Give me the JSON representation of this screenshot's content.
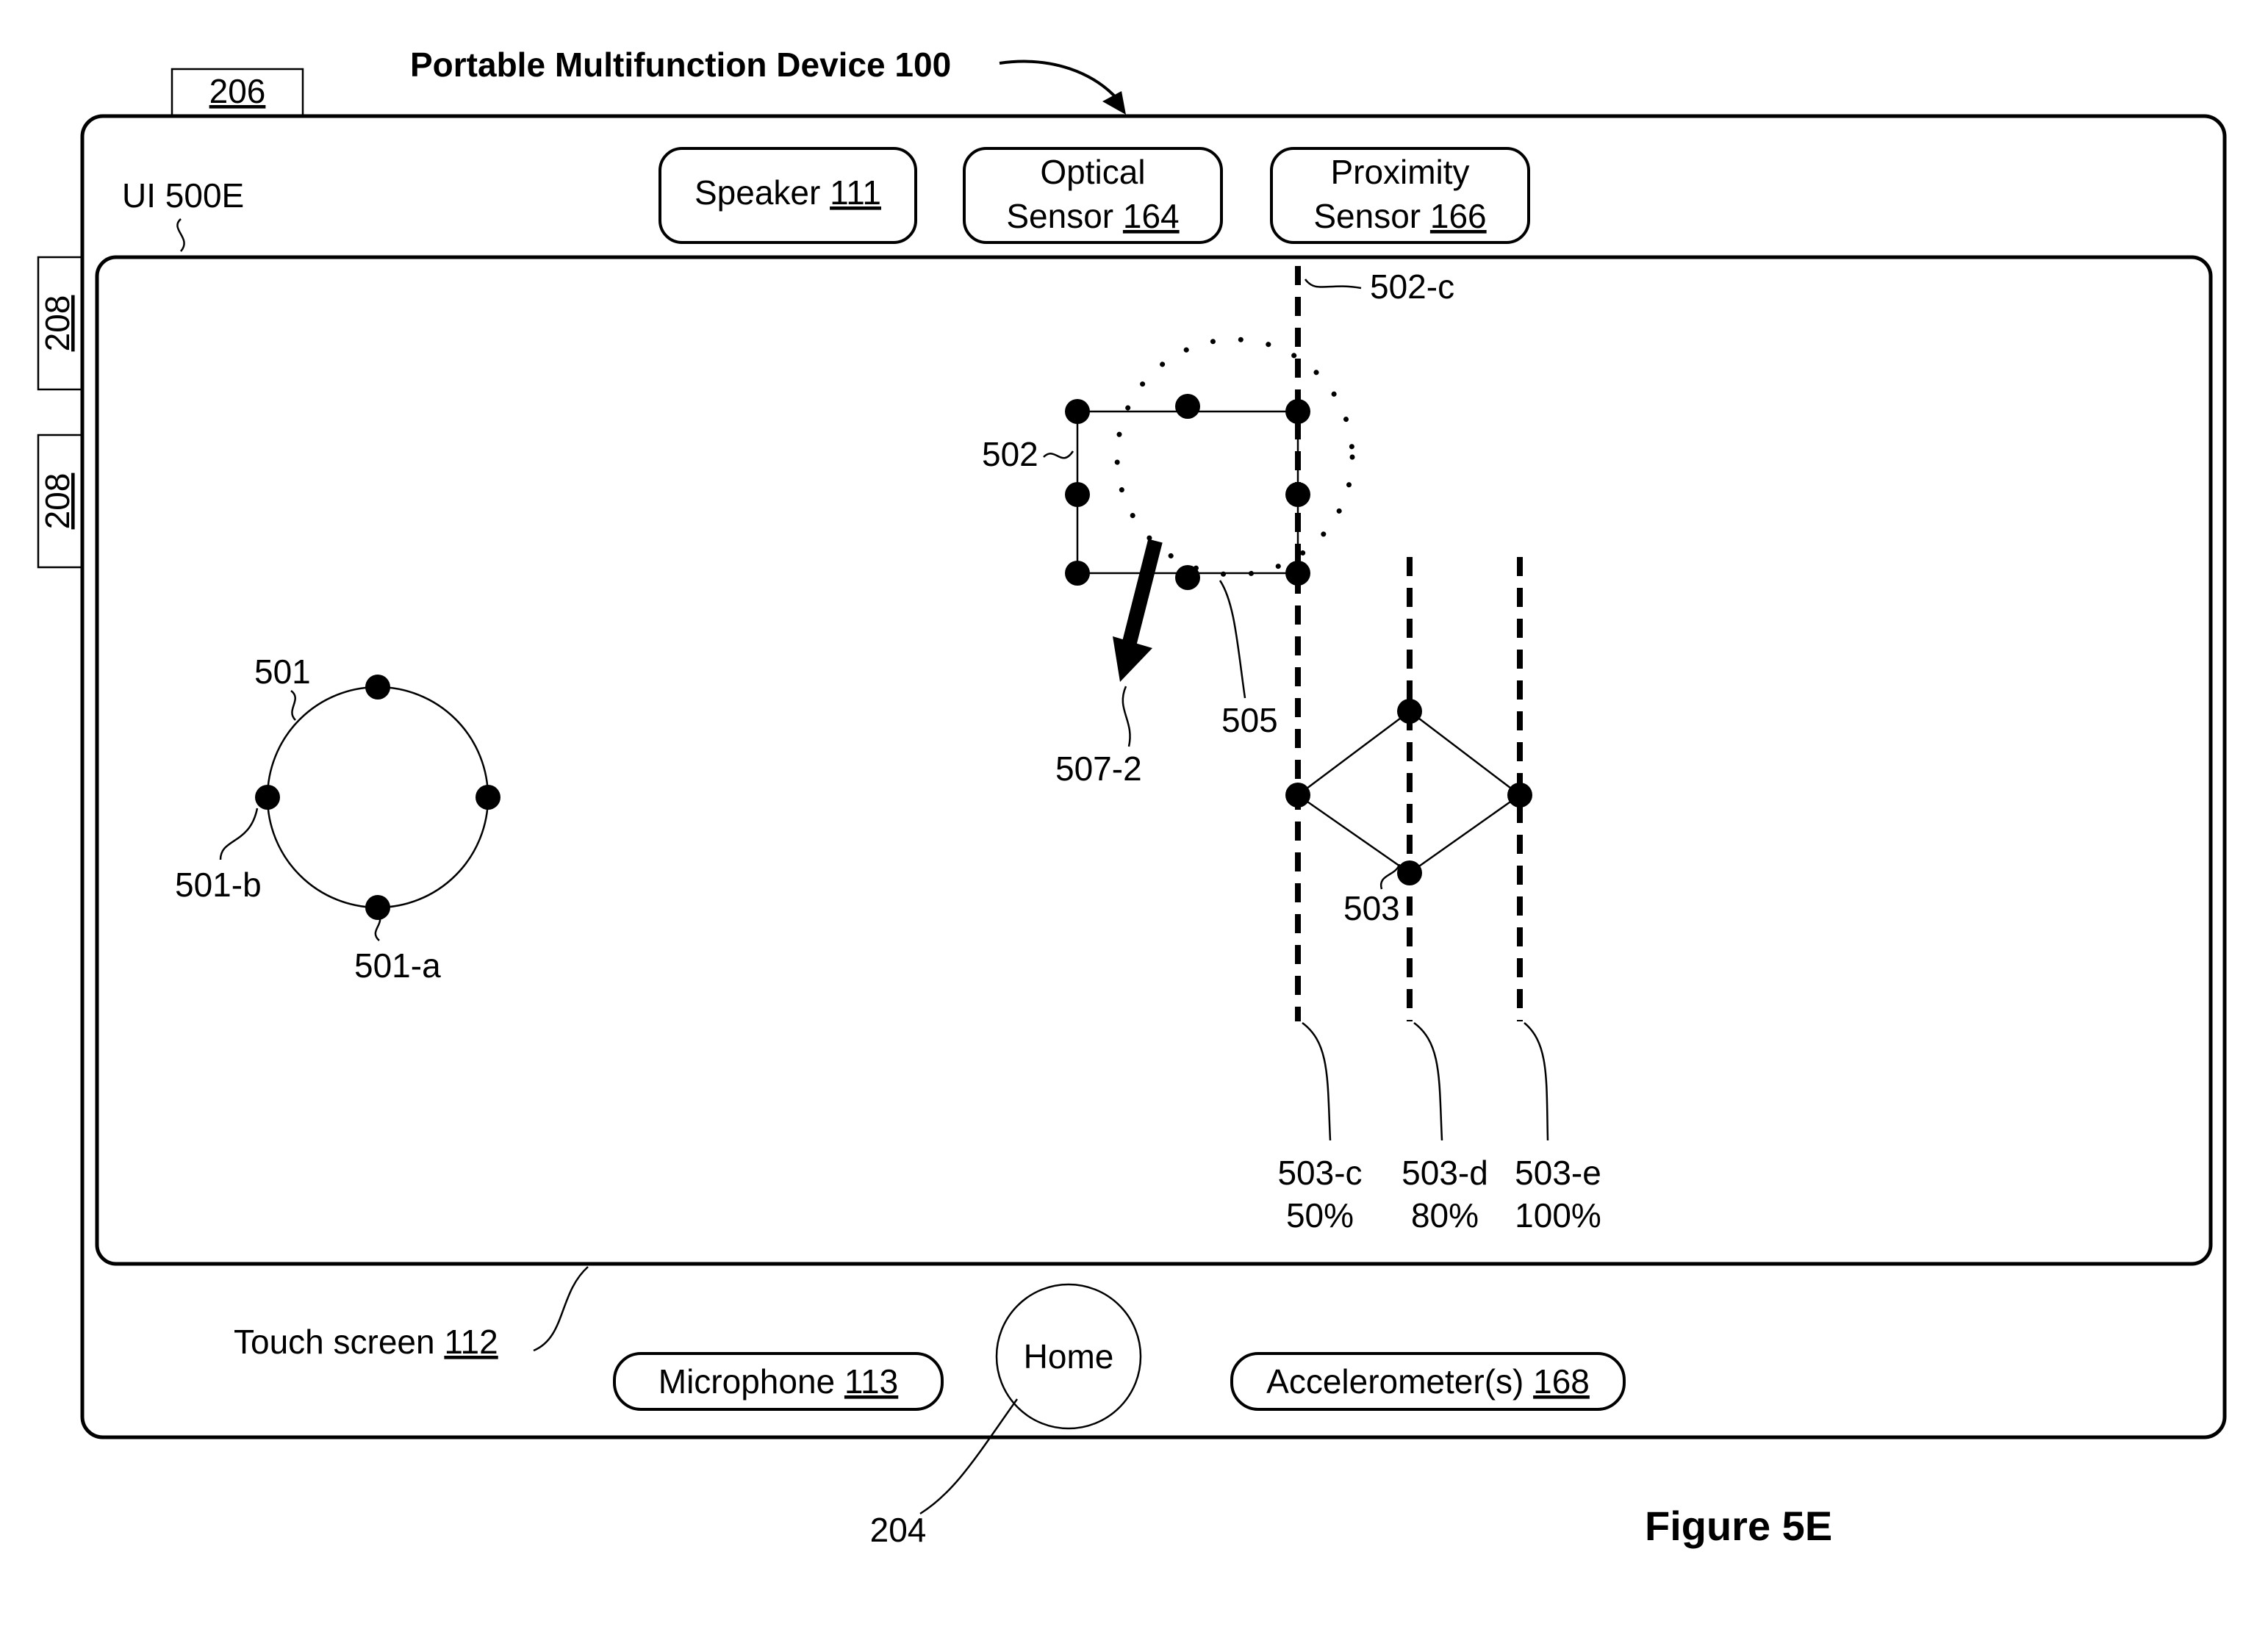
{
  "device": {
    "title": "Portable Multifunction Device 100",
    "side_button_top": "206",
    "side_button_1": "208",
    "side_button_2": "208",
    "ui_label": "UI 500E"
  },
  "sensors": {
    "speaker": {
      "text": "Speaker ",
      "ref": "111"
    },
    "optical": {
      "line1": "Optical",
      "text": "Sensor ",
      "ref": "164"
    },
    "proximity": {
      "line1": "Proximity",
      "text": "Sensor ",
      "ref": "166"
    }
  },
  "bottom": {
    "touch_screen": {
      "text": "Touch screen ",
      "ref": "112"
    },
    "microphone": {
      "text": "Microphone ",
      "ref": "113"
    },
    "home": "Home",
    "home_ref": "204",
    "accelerometer": {
      "text": "Accelerometer(s) ",
      "ref": "168"
    }
  },
  "shapes": {
    "circle": "501",
    "circle_a": "501-a",
    "circle_b": "501-b",
    "square": "502",
    "square_c": "502-c",
    "dotted_circle": "505",
    "arrow": "507-2",
    "diamond": "503"
  },
  "guides": {
    "c": {
      "label": "503-c",
      "value": "50%"
    },
    "d": {
      "label": "503-d",
      "value": "80%"
    },
    "e": {
      "label": "503-e",
      "value": "100%"
    }
  },
  "figure_label": "Figure 5E"
}
